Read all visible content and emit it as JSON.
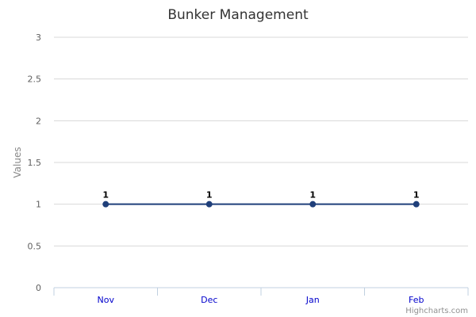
{
  "chart_data": {
    "type": "line",
    "title": "Bunker Management",
    "xlabel": "",
    "ylabel": "Values",
    "categories": [
      "Nov",
      "Dec",
      "Jan",
      "Feb"
    ],
    "series": [
      {
        "values": [
          1,
          1,
          1,
          1
        ],
        "color": "#1f3f7a"
      }
    ],
    "ylim": [
      0,
      3
    ],
    "yticks": [
      0,
      0.5,
      1,
      1.5,
      2,
      2.5,
      3
    ],
    "y_tick_labels": [
      "0",
      "0.5",
      "1",
      "1.5",
      "2",
      "2.5",
      "3"
    ],
    "data_labels": [
      "1",
      "1",
      "1",
      "1"
    ],
    "grid": true,
    "legend": "none",
    "gridline_color": "#d8d8d8",
    "axis_label_color": "#0000cc"
  },
  "credits": "Highcharts.com"
}
